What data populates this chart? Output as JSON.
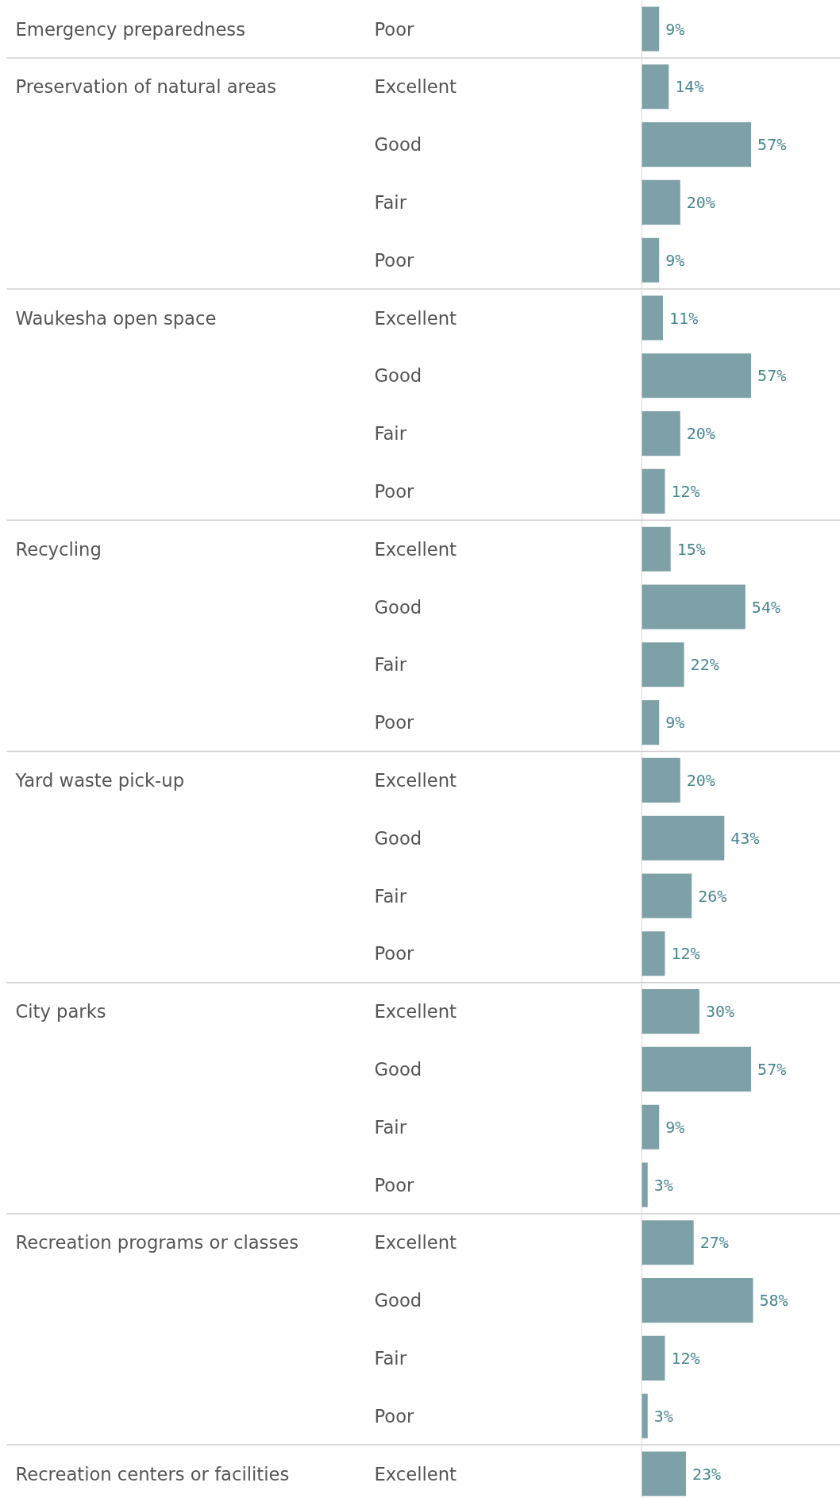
{
  "chart_data": {
    "type": "bar",
    "orientation": "horizontal",
    "data_labels": true,
    "color": "#7ea1a8",
    "categories": [
      "Poor",
      "Excellent",
      "Good",
      "Fair",
      "Poor",
      "Excellent",
      "Good",
      "Fair",
      "Poor",
      "Excellent",
      "Good",
      "Fair",
      "Poor",
      "Excellent",
      "Good",
      "Fair",
      "Poor",
      "Excellent",
      "Good",
      "Fair",
      "Poor",
      "Excellent",
      "Good",
      "Fair",
      "Poor",
      "Excellent"
    ],
    "values": [
      9,
      14,
      57,
      20,
      9,
      11,
      57,
      20,
      12,
      15,
      54,
      22,
      9,
      20,
      43,
      26,
      12,
      30,
      57,
      9,
      3,
      27,
      58,
      12,
      3,
      23
    ],
    "value_labels": [
      "9%",
      "14%",
      "57%",
      "20%",
      "9%",
      "11%",
      "57%",
      "20%",
      "12%",
      "15%",
      "54%",
      "22%",
      "9%",
      "20%",
      "43%",
      "26%",
      "12%",
      "30%",
      "57%",
      "9%",
      "3%",
      "27%",
      "58%",
      "12%",
      "3%",
      "23%"
    ],
    "annotations": [
      "Emergency preparedness",
      "Preservation of natural areas",
      "Waukesha open space",
      "Recycling",
      "Yard waste pick-up",
      "City parks",
      "Recreation programs or classes",
      "Recreation centers or facilities"
    ]
  }
}
